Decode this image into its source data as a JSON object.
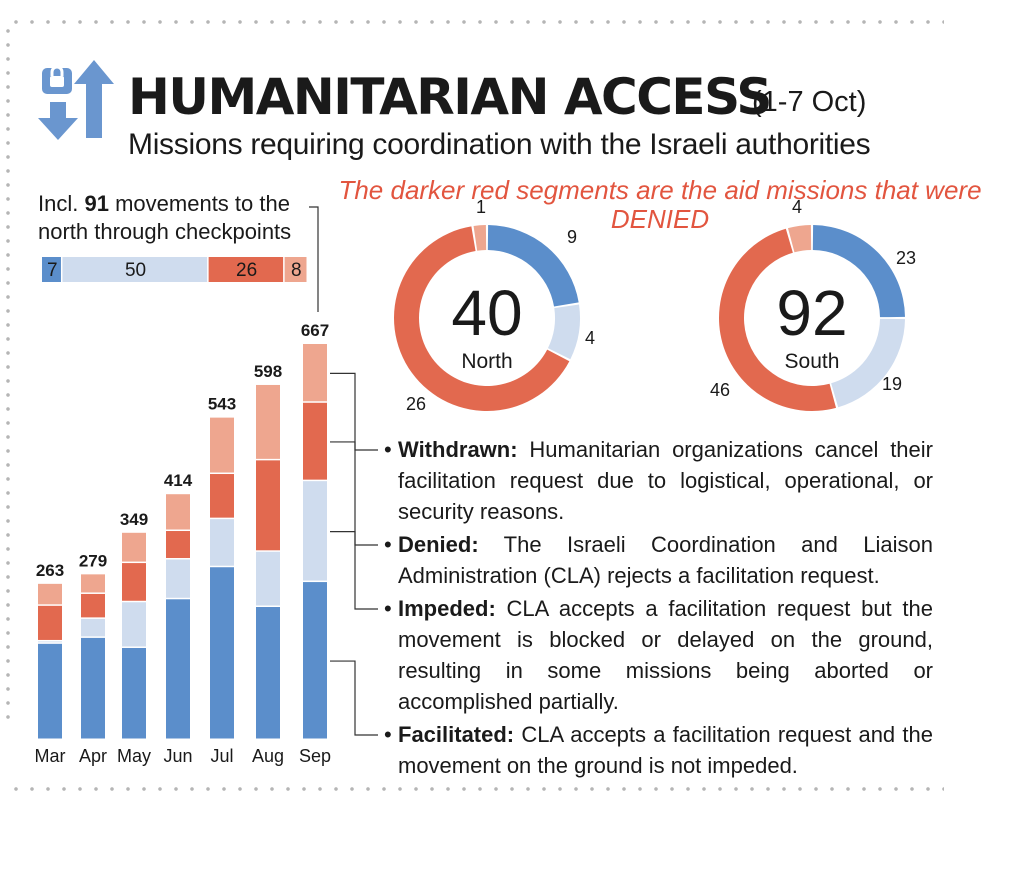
{
  "header": {
    "title": "HUMANITARIAN ACCESS",
    "period": "(1-7 Oct)",
    "subtitle": "Missions requiring coordination with the Israeli authorities",
    "note": "The darker red segments are the aid missions that were DENIED"
  },
  "colors": {
    "facilitated": "#5b8ecb",
    "impeded": "#cfdcee",
    "denied": "#e2694f",
    "withdrawn": "#eea68f",
    "icon": "#6a96cf"
  },
  "checkpoints": {
    "prefix": "Incl.",
    "count": "91",
    "suffix": "movements to the north through checkpoints",
    "segments": [
      {
        "label": "7",
        "value": 7,
        "status": "facilitated"
      },
      {
        "label": "50",
        "value": 50,
        "status": "impeded"
      },
      {
        "label": "26",
        "value": 26,
        "status": "denied"
      },
      {
        "label": "8",
        "value": 8,
        "status": "withdrawn"
      }
    ]
  },
  "chart_data": [
    {
      "type": "bar",
      "stacked": true,
      "categories": [
        "Mar",
        "Apr",
        "May",
        "Jun",
        "Jul",
        "Aug",
        "Sep"
      ],
      "totals": [
        "263",
        "279",
        "349",
        "414",
        "543",
        "598",
        "667"
      ],
      "series": [
        {
          "key": "facilitated",
          "values": [
            162,
            172,
            155,
            237,
            291,
            224,
            266
          ]
        },
        {
          "key": "impeded",
          "values": [
            4,
            32,
            77,
            67,
            81,
            93,
            170
          ]
        },
        {
          "key": "denied",
          "values": [
            60,
            42,
            66,
            48,
            76,
            154,
            132
          ]
        },
        {
          "key": "withdrawn",
          "values": [
            37,
            33,
            51,
            62,
            95,
            127,
            99
          ]
        }
      ]
    },
    {
      "type": "pie",
      "donut": true,
      "total": "40",
      "name": "North",
      "slices": [
        {
          "key": "facilitated",
          "value": 9,
          "label": "9"
        },
        {
          "key": "impeded",
          "value": 4,
          "label": "4"
        },
        {
          "key": "denied",
          "value": 26,
          "label": "26"
        },
        {
          "key": "withdrawn",
          "value": 1,
          "label": "1"
        }
      ]
    },
    {
      "type": "pie",
      "donut": true,
      "total": "92",
      "name": "South",
      "slices": [
        {
          "key": "facilitated",
          "value": 23,
          "label": "23"
        },
        {
          "key": "impeded",
          "value": 19,
          "label": "19"
        },
        {
          "key": "denied",
          "value": 46,
          "label": "46"
        },
        {
          "key": "withdrawn",
          "value": 4,
          "label": "4"
        }
      ]
    }
  ],
  "legend": [
    {
      "key": "withdrawn",
      "term": "Withdrawn:",
      "text": "Humanitarian organizations cancel their facilitation request due to logistical, operational, or security reasons."
    },
    {
      "key": "denied",
      "term": "Denied:",
      "text": "The Israeli Coordination and Liaison Administration (CLA) rejects a facilitation request."
    },
    {
      "key": "impeded",
      "term": "Impeded:",
      "text": "CLA accepts a facilitation request but the movement is blocked or delayed on the ground, resulting in some missions being aborted or accomplished partially."
    },
    {
      "key": "facilitated",
      "term": "Facilitated:",
      "text": "CLA accepts a facilitation request and the movement on the ground is not impeded."
    }
  ],
  "icons": {
    "header": "lock-arrows-icon"
  }
}
